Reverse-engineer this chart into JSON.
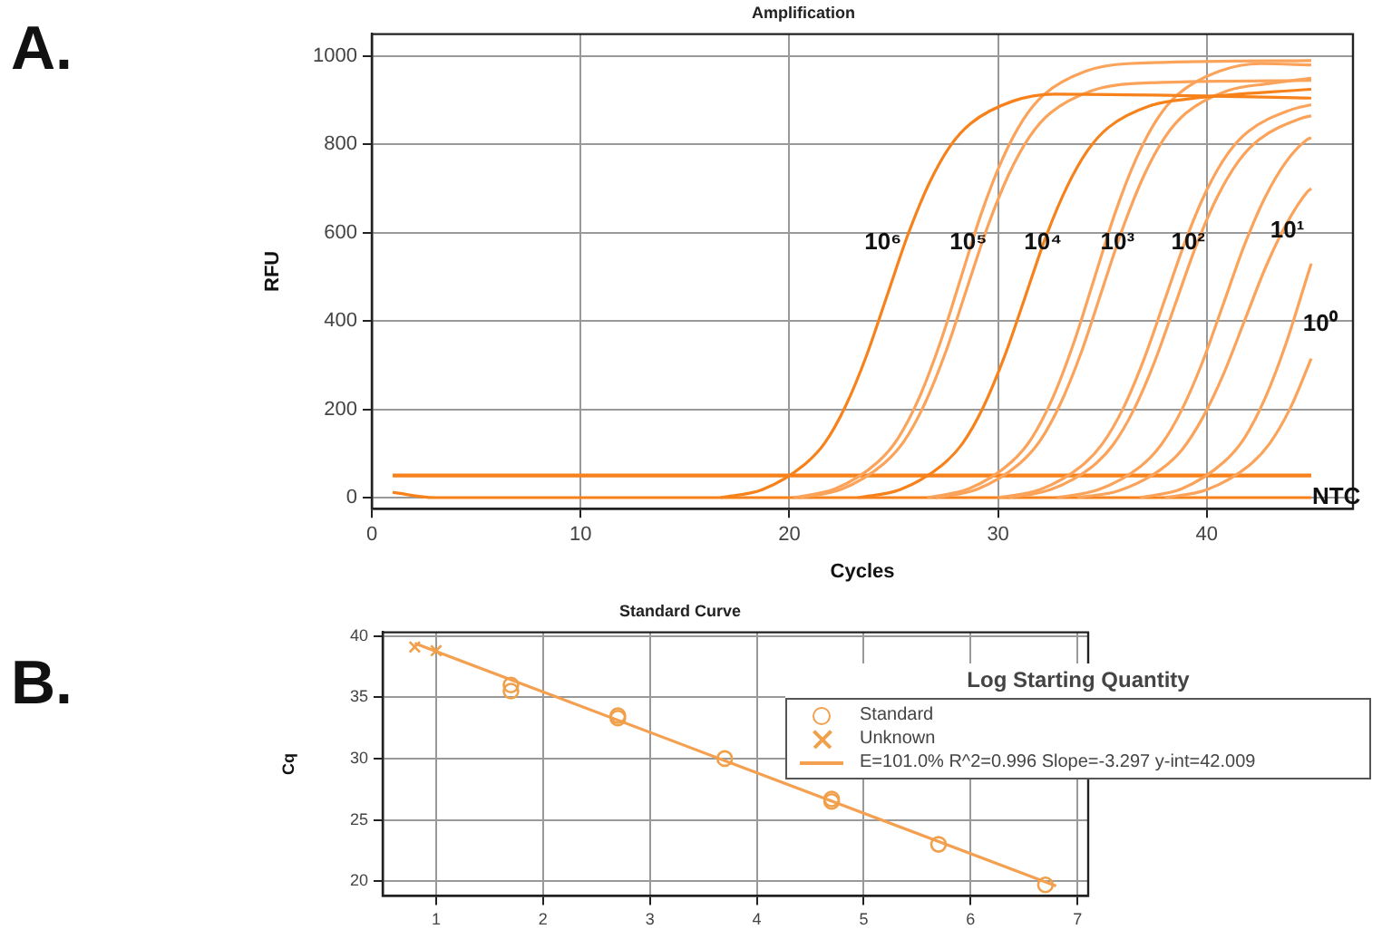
{
  "chart_data": [
    {
      "type": "line",
      "title": "Amplification",
      "xlabel": "Cycles",
      "ylabel": "RFU",
      "xlim": [
        0,
        47
      ],
      "ylim": [
        -25,
        1050
      ],
      "xticks": [
        0,
        10,
        20,
        30,
        40
      ],
      "yticks": [
        0,
        200,
        400,
        600,
        800,
        1000
      ],
      "grid": true,
      "legend": false,
      "marker": "none",
      "annotations": [
        "A.",
        "10⁶",
        "10⁵",
        "10⁴",
        "10³",
        "10²",
        "10¹",
        "10⁰",
        "NTC"
      ],
      "ref_lines": [
        {
          "axis": "y",
          "value": 50,
          "color": "#f7821b"
        }
      ],
      "series": [
        {
          "color": "#f7821b",
          "x": [
            16.7,
            18.7,
            20.7,
            21.7,
            22.7,
            23.7,
            24.7,
            25.7,
            26.7,
            27.7,
            28.7,
            30.7,
            32.7,
            45
          ],
          "values": [
            0,
            18,
            74,
            124,
            208,
            322,
            460,
            598,
            712,
            796,
            848,
            898,
            914,
            905
          ]
        },
        {
          "color": "#fba35a",
          "x": [
            20.2,
            22.2,
            24.2,
            25.2,
            26.2,
            27.2,
            28.2,
            29.2,
            30.2,
            31.2,
            32.2,
            34.2,
            36.2,
            45
          ],
          "values": [
            0,
            20,
            79,
            134,
            224,
            347,
            495,
            644,
            766,
            856,
            913,
            966,
            983,
            990
          ]
        },
        {
          "color": "#fba35a",
          "x": [
            20.5,
            22.5,
            24.5,
            25.5,
            26.5,
            27.5,
            28.5,
            29.5,
            30.5,
            31.5,
            32.5,
            34.5,
            36.5,
            45
          ],
          "values": [
            0,
            19,
            76,
            128,
            214,
            331,
            473,
            614,
            731,
            817,
            871,
            922,
            938,
            945
          ]
        },
        {
          "color": "#f7821b",
          "x": [
            23.3,
            25.3,
            27.3,
            28.3,
            29.3,
            30.3,
            31.3,
            32.3,
            33.3,
            34.3,
            35.3,
            37.3,
            39.3,
            45
          ],
          "values": [
            0,
            18,
            73,
            123,
            206,
            319,
            455,
            592,
            704,
            787,
            839,
            888,
            904,
            925
          ]
        },
        {
          "color": "#fba35a",
          "x": [
            26.6,
            28.6,
            30.6,
            31.6,
            32.6,
            33.6,
            34.6,
            35.6,
            36.6,
            37.6,
            38.6,
            40.6,
            42.6,
            45
          ],
          "values": [
            0,
            20,
            79,
            134,
            224,
            347,
            495,
            644,
            766,
            856,
            913,
            966,
            983,
            980
          ]
        },
        {
          "color": "#fba35a",
          "x": [
            27,
            29,
            31,
            32,
            33,
            34,
            35,
            36,
            37,
            38,
            39,
            41,
            43,
            45
          ],
          "values": [
            0,
            19,
            76,
            128,
            214,
            331,
            473,
            614,
            731,
            817,
            871,
            922,
            938,
            950
          ]
        },
        {
          "color": "#fba35a",
          "x": [
            30,
            32,
            34,
            35,
            36,
            37,
            38,
            39,
            40,
            41,
            42,
            44,
            45
          ],
          "values": [
            0,
            18,
            72,
            122,
            203,
            315,
            450,
            585,
            697,
            779,
            830,
            878,
            890
          ]
        },
        {
          "color": "#fba35a",
          "x": [
            30.5,
            32.5,
            34.5,
            35.5,
            36.5,
            37.5,
            38.5,
            39.5,
            40.5,
            41.5,
            42.5,
            44.5,
            45
          ],
          "values": [
            0,
            18,
            70,
            119,
            199,
            308,
            440,
            572,
            681,
            761,
            811,
            859,
            865
          ]
        },
        {
          "color": "#fba35a",
          "x": [
            32.8,
            34.8,
            36.8,
            37.8,
            38.8,
            39.8,
            40.8,
            41.8,
            42.8,
            43.8,
            44.8,
            45
          ],
          "values": [
            0,
            18,
            70,
            119,
            199,
            308,
            440,
            572,
            681,
            761,
            811,
            815
          ]
        },
        {
          "color": "#fba35a",
          "x": [
            33.8,
            35.8,
            37.8,
            38.8,
            39.8,
            40.8,
            41.8,
            42.8,
            43.8,
            44.8,
            45
          ],
          "values": [
            0,
            16,
            64,
            108,
            181,
            280,
            400,
            520,
            619,
            692,
            700
          ]
        },
        {
          "color": "#fba35a",
          "x": [
            36.8,
            38.8,
            40.8,
            41.8,
            42.8,
            43.8,
            44.8,
            45
          ],
          "values": [
            0,
            20,
            80,
            135,
            226,
            350,
            500,
            530
          ]
        },
        {
          "color": "#fba35a",
          "x": [
            38,
            40,
            42,
            43,
            44,
            45
          ],
          "values": [
            0,
            18,
            72,
            122,
            203,
            315
          ]
        },
        {
          "color": "#f7821b",
          "x": [
            1,
            3,
            45
          ],
          "values": [
            12,
            0,
            0
          ]
        }
      ]
    },
    {
      "type": "scatter",
      "title": "Standard Curve",
      "ylabel": "Cq",
      "xlim": [
        0.5,
        7.1
      ],
      "ylim": [
        18.8,
        40.3
      ],
      "xticks": [
        1,
        2,
        3,
        4,
        5,
        6,
        7
      ],
      "yticks": [
        20,
        25,
        30,
        35,
        40
      ],
      "grid": true,
      "legend": "right",
      "legend_title": "Log Starting Quantity",
      "annotations": [
        "B."
      ],
      "series": [
        {
          "name": "Standard",
          "marker": "circle",
          "color": "#f0a04b",
          "x": [
            1.7,
            1.7,
            2.7,
            2.7,
            3.7,
            4.7,
            4.7,
            5.7,
            6.7
          ],
          "values": [
            36,
            35.5,
            33.5,
            33.3,
            30,
            26.7,
            26.5,
            23,
            19.7
          ]
        },
        {
          "name": "Unknown",
          "marker": "cross",
          "color": "#f0a04b",
          "x": [
            0.8,
            1
          ],
          "values": [
            39.1,
            38.8
          ]
        },
        {
          "name": "E=101.0% R^2=0.996 Slope=-3.297 y-int=42.009",
          "type": "line",
          "marker": "none",
          "color": "#f5a050",
          "x": [
            0.8,
            6.8
          ],
          "values": [
            39.4,
            19.6
          ]
        }
      ]
    }
  ]
}
